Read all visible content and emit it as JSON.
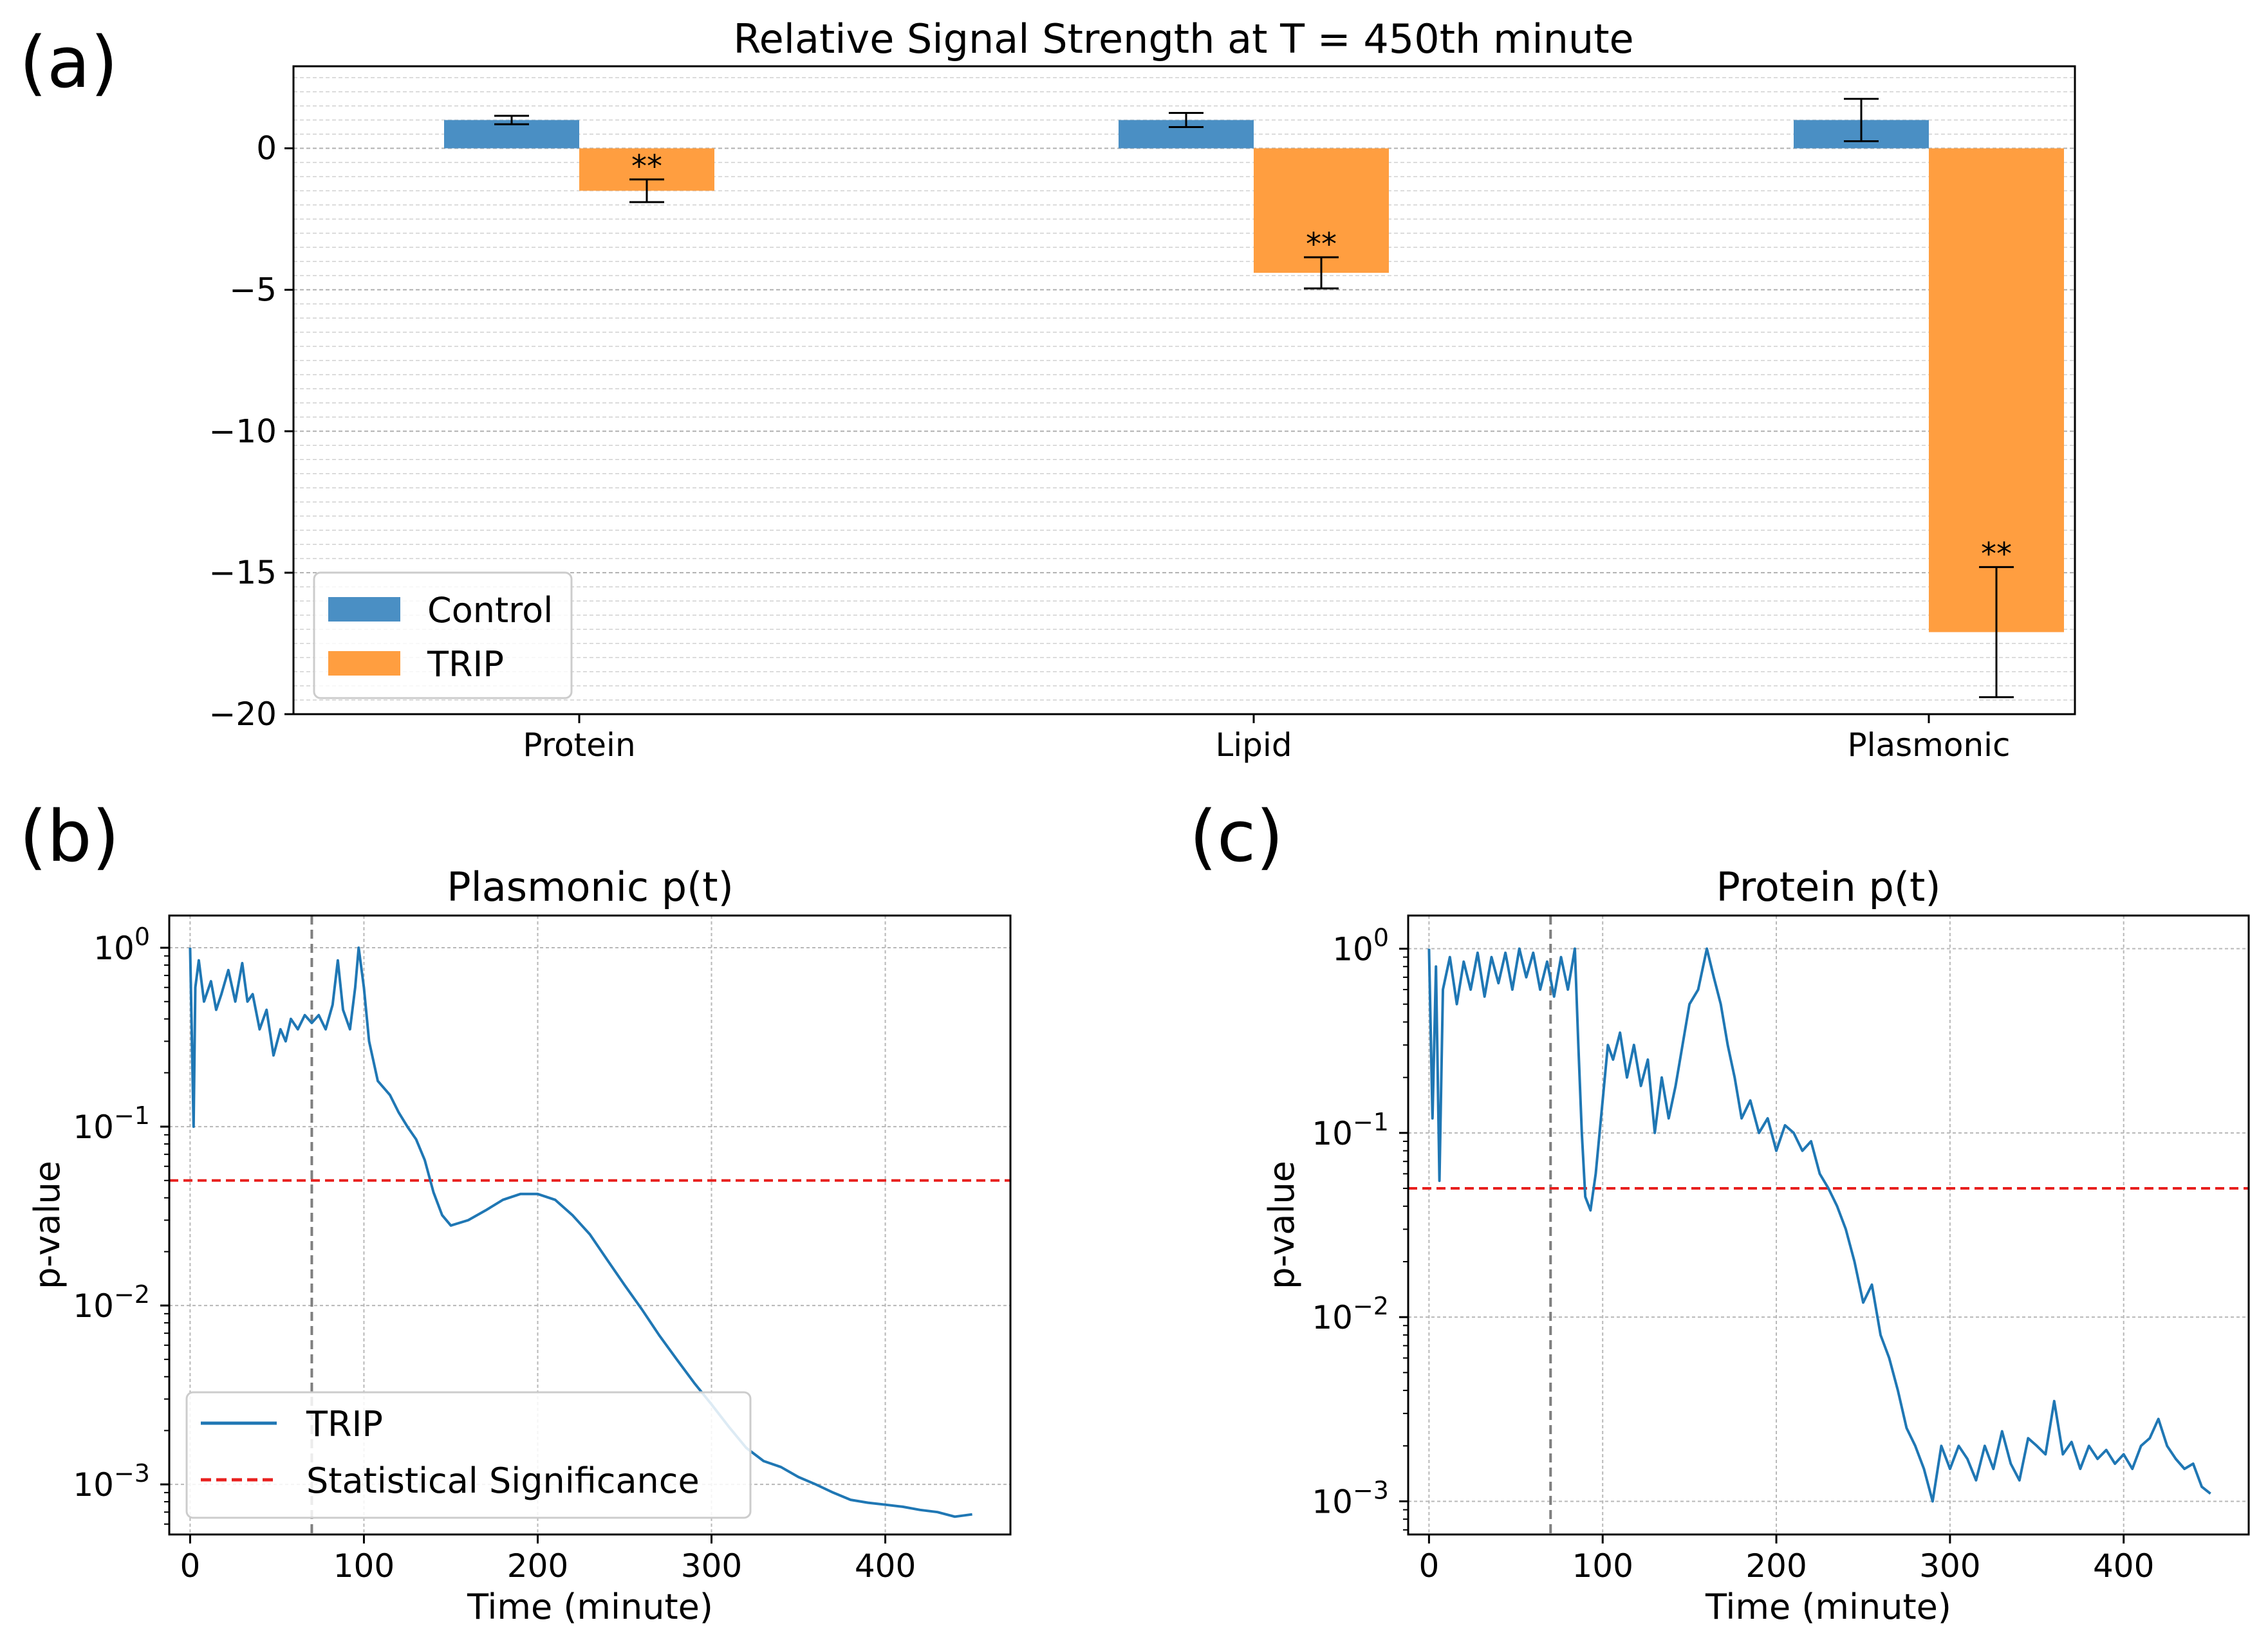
{
  "chart_data": [
    {
      "panel_label": "(a)",
      "type": "bar",
      "title": "Relative Signal Strength at T = 450th minute",
      "categories": [
        "Protein",
        "Lipid",
        "Plasmonic"
      ],
      "series": [
        {
          "name": "Control",
          "color": "#4a8fc4",
          "values": [
            1.0,
            1.0,
            1.0
          ],
          "err_low": [
            0.15,
            0.25,
            0.75
          ],
          "err_high": [
            0.15,
            0.25,
            0.75
          ]
        },
        {
          "name": "TRIP",
          "color": "#ff9e40",
          "values": [
            -1.5,
            -4.4,
            -17.1
          ],
          "err_low": [
            0.4,
            0.55,
            2.3
          ],
          "err_high": [
            0.4,
            0.55,
            2.3
          ]
        }
      ],
      "annotations": [
        "**",
        "**",
        "**"
      ],
      "yticks": [
        0,
        -5,
        -10,
        -15,
        -20
      ],
      "ytick_labels": [
        "0",
        "−5",
        "−10",
        "−15",
        "−20"
      ],
      "ylim": [
        -20,
        2.9
      ],
      "grid": true,
      "legend": "lower-left"
    },
    {
      "panel_label": "(b)",
      "type": "line",
      "title": "Plasmonic p(t)",
      "xlabel": "Time (minute)",
      "ylabel": "p-value",
      "yscale": "log",
      "xlim": [
        -12,
        472
      ],
      "ylim_exp": [
        -3.28,
        0.18
      ],
      "xticks": [
        0,
        100,
        200,
        300,
        400
      ],
      "xtick_labels": [
        "0",
        "100",
        "200",
        "300",
        "400"
      ],
      "yticks_base": "10",
      "yticks_exp": [
        "0",
        "−1",
        "−2",
        "−3"
      ],
      "threshold": 0.05,
      "vline_x": 70,
      "series_name": "TRIP",
      "threshold_name": "Statistical Significance",
      "series_color": "#1f77b4",
      "threshold_color": "#e8201e",
      "legend": "lower-left",
      "points": [
        [
          0,
          1.0
        ],
        [
          2,
          0.1
        ],
        [
          3,
          0.6
        ],
        [
          5,
          0.85
        ],
        [
          8,
          0.5
        ],
        [
          12,
          0.65
        ],
        [
          15,
          0.45
        ],
        [
          18,
          0.55
        ],
        [
          22,
          0.75
        ],
        [
          26,
          0.5
        ],
        [
          30,
          0.82
        ],
        [
          33,
          0.5
        ],
        [
          36,
          0.55
        ],
        [
          40,
          0.35
        ],
        [
          44,
          0.45
        ],
        [
          48,
          0.25
        ],
        [
          52,
          0.35
        ],
        [
          55,
          0.3
        ],
        [
          58,
          0.4
        ],
        [
          62,
          0.35
        ],
        [
          66,
          0.42
        ],
        [
          70,
          0.38
        ],
        [
          74,
          0.42
        ],
        [
          78,
          0.35
        ],
        [
          82,
          0.48
        ],
        [
          85,
          0.85
        ],
        [
          88,
          0.45
        ],
        [
          92,
          0.35
        ],
        [
          95,
          0.6
        ],
        [
          97,
          1.0
        ],
        [
          100,
          0.6
        ],
        [
          103,
          0.3
        ],
        [
          108,
          0.18
        ],
        [
          115,
          0.15
        ],
        [
          120,
          0.12
        ],
        [
          125,
          0.1
        ],
        [
          130,
          0.085
        ],
        [
          135,
          0.065
        ],
        [
          140,
          0.043
        ],
        [
          145,
          0.032
        ],
        [
          150,
          0.028
        ],
        [
          160,
          0.03
        ],
        [
          170,
          0.034
        ],
        [
          180,
          0.039
        ],
        [
          190,
          0.042
        ],
        [
          200,
          0.042
        ],
        [
          210,
          0.039
        ],
        [
          220,
          0.032
        ],
        [
          230,
          0.025
        ],
        [
          240,
          0.018
        ],
        [
          250,
          0.013
        ],
        [
          260,
          0.0095
        ],
        [
          270,
          0.0068
        ],
        [
          280,
          0.005
        ],
        [
          290,
          0.0037
        ],
        [
          300,
          0.0028
        ],
        [
          310,
          0.0021
        ],
        [
          320,
          0.0016
        ],
        [
          330,
          0.00135
        ],
        [
          340,
          0.00125
        ],
        [
          350,
          0.0011
        ],
        [
          360,
          0.001
        ],
        [
          370,
          0.0009
        ],
        [
          380,
          0.00082
        ],
        [
          390,
          0.00079
        ],
        [
          400,
          0.00077
        ],
        [
          410,
          0.00075
        ],
        [
          420,
          0.00072
        ],
        [
          430,
          0.0007
        ],
        [
          440,
          0.00066
        ],
        [
          450,
          0.00068
        ]
      ]
    },
    {
      "panel_label": "(c)",
      "type": "line",
      "title": "Protein p(t)",
      "xlabel": "Time (minute)",
      "ylabel": "p-value",
      "yscale": "log",
      "xlim": [
        -12,
        472
      ],
      "ylim_exp": [
        -3.18,
        0.18
      ],
      "xticks": [
        0,
        100,
        200,
        300,
        400
      ],
      "xtick_labels": [
        "0",
        "100",
        "200",
        "300",
        "400"
      ],
      "yticks_base": "10",
      "yticks_exp": [
        "0",
        "−1",
        "−2",
        "−3"
      ],
      "threshold": 0.05,
      "vline_x": 70,
      "series_color": "#1f77b4",
      "threshold_color": "#e8201e",
      "points": [
        [
          0,
          1.0
        ],
        [
          2,
          0.12
        ],
        [
          4,
          0.8
        ],
        [
          6,
          0.055
        ],
        [
          8,
          0.6
        ],
        [
          12,
          0.9
        ],
        [
          16,
          0.5
        ],
        [
          20,
          0.85
        ],
        [
          24,
          0.6
        ],
        [
          28,
          0.95
        ],
        [
          32,
          0.55
        ],
        [
          36,
          0.9
        ],
        [
          40,
          0.65
        ],
        [
          44,
          0.95
        ],
        [
          48,
          0.6
        ],
        [
          52,
          1.0
        ],
        [
          56,
          0.7
        ],
        [
          60,
          0.95
        ],
        [
          64,
          0.6
        ],
        [
          68,
          0.85
        ],
        [
          72,
          0.55
        ],
        [
          76,
          0.9
        ],
        [
          80,
          0.6
        ],
        [
          84,
          1.0
        ],
        [
          86,
          0.3
        ],
        [
          88,
          0.1
        ],
        [
          90,
          0.045
        ],
        [
          93,
          0.038
        ],
        [
          96,
          0.06
        ],
        [
          100,
          0.15
        ],
        [
          103,
          0.3
        ],
        [
          106,
          0.25
        ],
        [
          110,
          0.35
        ],
        [
          114,
          0.2
        ],
        [
          118,
          0.3
        ],
        [
          122,
          0.18
        ],
        [
          126,
          0.25
        ],
        [
          130,
          0.1
        ],
        [
          134,
          0.2
        ],
        [
          138,
          0.12
        ],
        [
          142,
          0.18
        ],
        [
          146,
          0.3
        ],
        [
          150,
          0.5
        ],
        [
          155,
          0.6
        ],
        [
          160,
          1.0
        ],
        [
          164,
          0.7
        ],
        [
          168,
          0.5
        ],
        [
          172,
          0.3
        ],
        [
          176,
          0.2
        ],
        [
          180,
          0.12
        ],
        [
          185,
          0.15
        ],
        [
          190,
          0.1
        ],
        [
          195,
          0.12
        ],
        [
          200,
          0.08
        ],
        [
          205,
          0.11
        ],
        [
          210,
          0.1
        ],
        [
          215,
          0.08
        ],
        [
          220,
          0.09
        ],
        [
          225,
          0.06
        ],
        [
          230,
          0.05
        ],
        [
          235,
          0.04
        ],
        [
          240,
          0.03
        ],
        [
          245,
          0.02
        ],
        [
          250,
          0.012
        ],
        [
          255,
          0.015
        ],
        [
          260,
          0.008
        ],
        [
          265,
          0.006
        ],
        [
          270,
          0.004
        ],
        [
          275,
          0.0025
        ],
        [
          280,
          0.002
        ],
        [
          285,
          0.0015
        ],
        [
          290,
          0.001
        ],
        [
          295,
          0.002
        ],
        [
          300,
          0.0015
        ],
        [
          305,
          0.002
        ],
        [
          310,
          0.0017
        ],
        [
          315,
          0.0013
        ],
        [
          320,
          0.002
        ],
        [
          325,
          0.0015
        ],
        [
          330,
          0.0024
        ],
        [
          335,
          0.0016
        ],
        [
          340,
          0.0013
        ],
        [
          345,
          0.0022
        ],
        [
          350,
          0.002
        ],
        [
          355,
          0.0018
        ],
        [
          360,
          0.0035
        ],
        [
          365,
          0.0018
        ],
        [
          370,
          0.0021
        ],
        [
          375,
          0.0015
        ],
        [
          380,
          0.002
        ],
        [
          385,
          0.0017
        ],
        [
          390,
          0.0019
        ],
        [
          395,
          0.0016
        ],
        [
          400,
          0.0018
        ],
        [
          405,
          0.0015
        ],
        [
          410,
          0.002
        ],
        [
          415,
          0.0022
        ],
        [
          420,
          0.0028
        ],
        [
          425,
          0.002
        ],
        [
          430,
          0.0017
        ],
        [
          435,
          0.0015
        ],
        [
          440,
          0.0016
        ],
        [
          445,
          0.0012
        ],
        [
          450,
          0.0011
        ]
      ]
    }
  ]
}
